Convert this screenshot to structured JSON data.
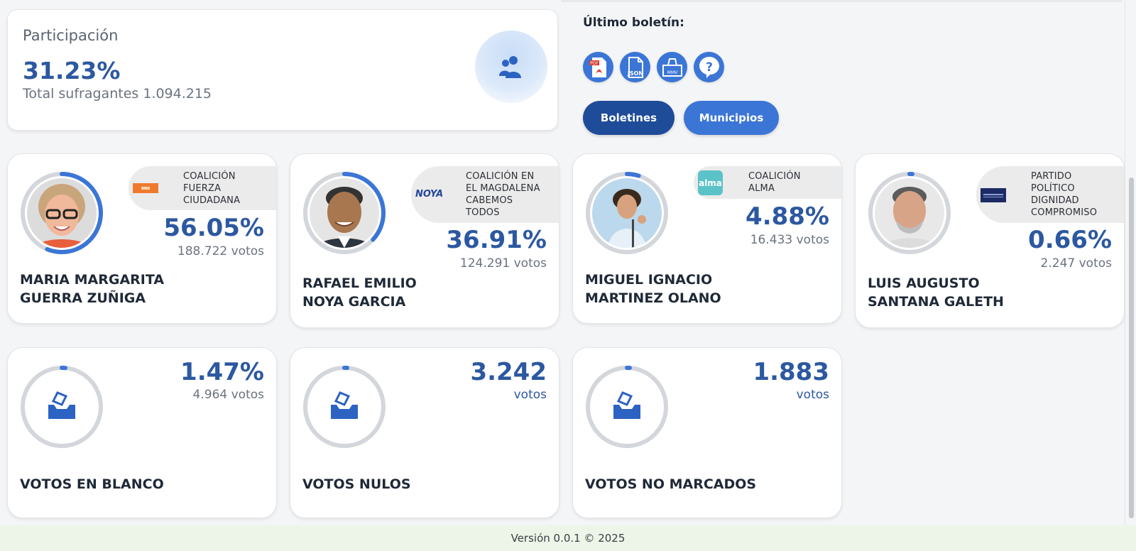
{
  "participation": {
    "title": "Participación",
    "percent": "31.23%",
    "total_label": "Total sufragantes 1.094.215"
  },
  "boletin": {
    "title": "Último boletín:",
    "files": [
      {
        "name": "pdf-icon",
        "label": "PDF"
      },
      {
        "name": "json-icon",
        "label": "JSON"
      },
      {
        "name": "mmv-icon",
        "label": "MMV"
      },
      {
        "name": "help-icon",
        "label": "?"
      }
    ],
    "buttons": {
      "boletines": "Boletines",
      "municipios": "Municipios"
    }
  },
  "candidates": [
    {
      "name_line1": "MARIA MARGARITA",
      "name_line2": "GUERRA ZUÑIGA",
      "party": [
        "COALICIÓN",
        "FUERZA",
        "CIUDADANA"
      ],
      "percent": "56.05%",
      "votes": "188.722 votos",
      "share": 0.5605
    },
    {
      "name_line1": "RAFAEL EMILIO",
      "name_line2": "NOYA GARCIA",
      "party": [
        "COALICIÓN EN",
        "EL MAGDALENA",
        "CABEMOS",
        "TODOS"
      ],
      "party_logo_text": "NOYA",
      "percent": "36.91%",
      "votes": "124.291 votos",
      "share": 0.3691
    },
    {
      "name_line1": "MIGUEL IGNACIO",
      "name_line2": "MARTINEZ OLANO",
      "party": [
        "COALICIÓN",
        "ALMA"
      ],
      "party_logo_text": "alma",
      "percent": "4.88%",
      "votes": "16.433 votos",
      "share": 0.0488
    },
    {
      "name_line1": "LUIS AUGUSTO",
      "name_line2": "SANTANA GALETH",
      "party": [
        "PARTIDO",
        "POLÍTICO",
        "DIGNIDAD",
        "COMPROMISO"
      ],
      "percent": "0.66%",
      "votes": "2.247 votos",
      "share": 0.0066
    }
  ],
  "special": [
    {
      "label": "VOTOS EN BLANCO",
      "value": "1.47%",
      "sub": "4.964 votos",
      "share": 0.0147
    },
    {
      "label": "VOTOS NULOS",
      "value": "3.242",
      "sub": "votos",
      "share": 0.0096
    },
    {
      "label": "VOTOS NO MARCADOS",
      "value": "1.883",
      "sub": "votos",
      "share": 0.0056
    }
  ],
  "footer": {
    "text": "Versión 0.0.1 © 2025"
  },
  "colors": {
    "accent": "#3b76d6",
    "dark_button": "#1f4c99",
    "ring_track": "#d3d6db",
    "value": "#2c58a0"
  }
}
